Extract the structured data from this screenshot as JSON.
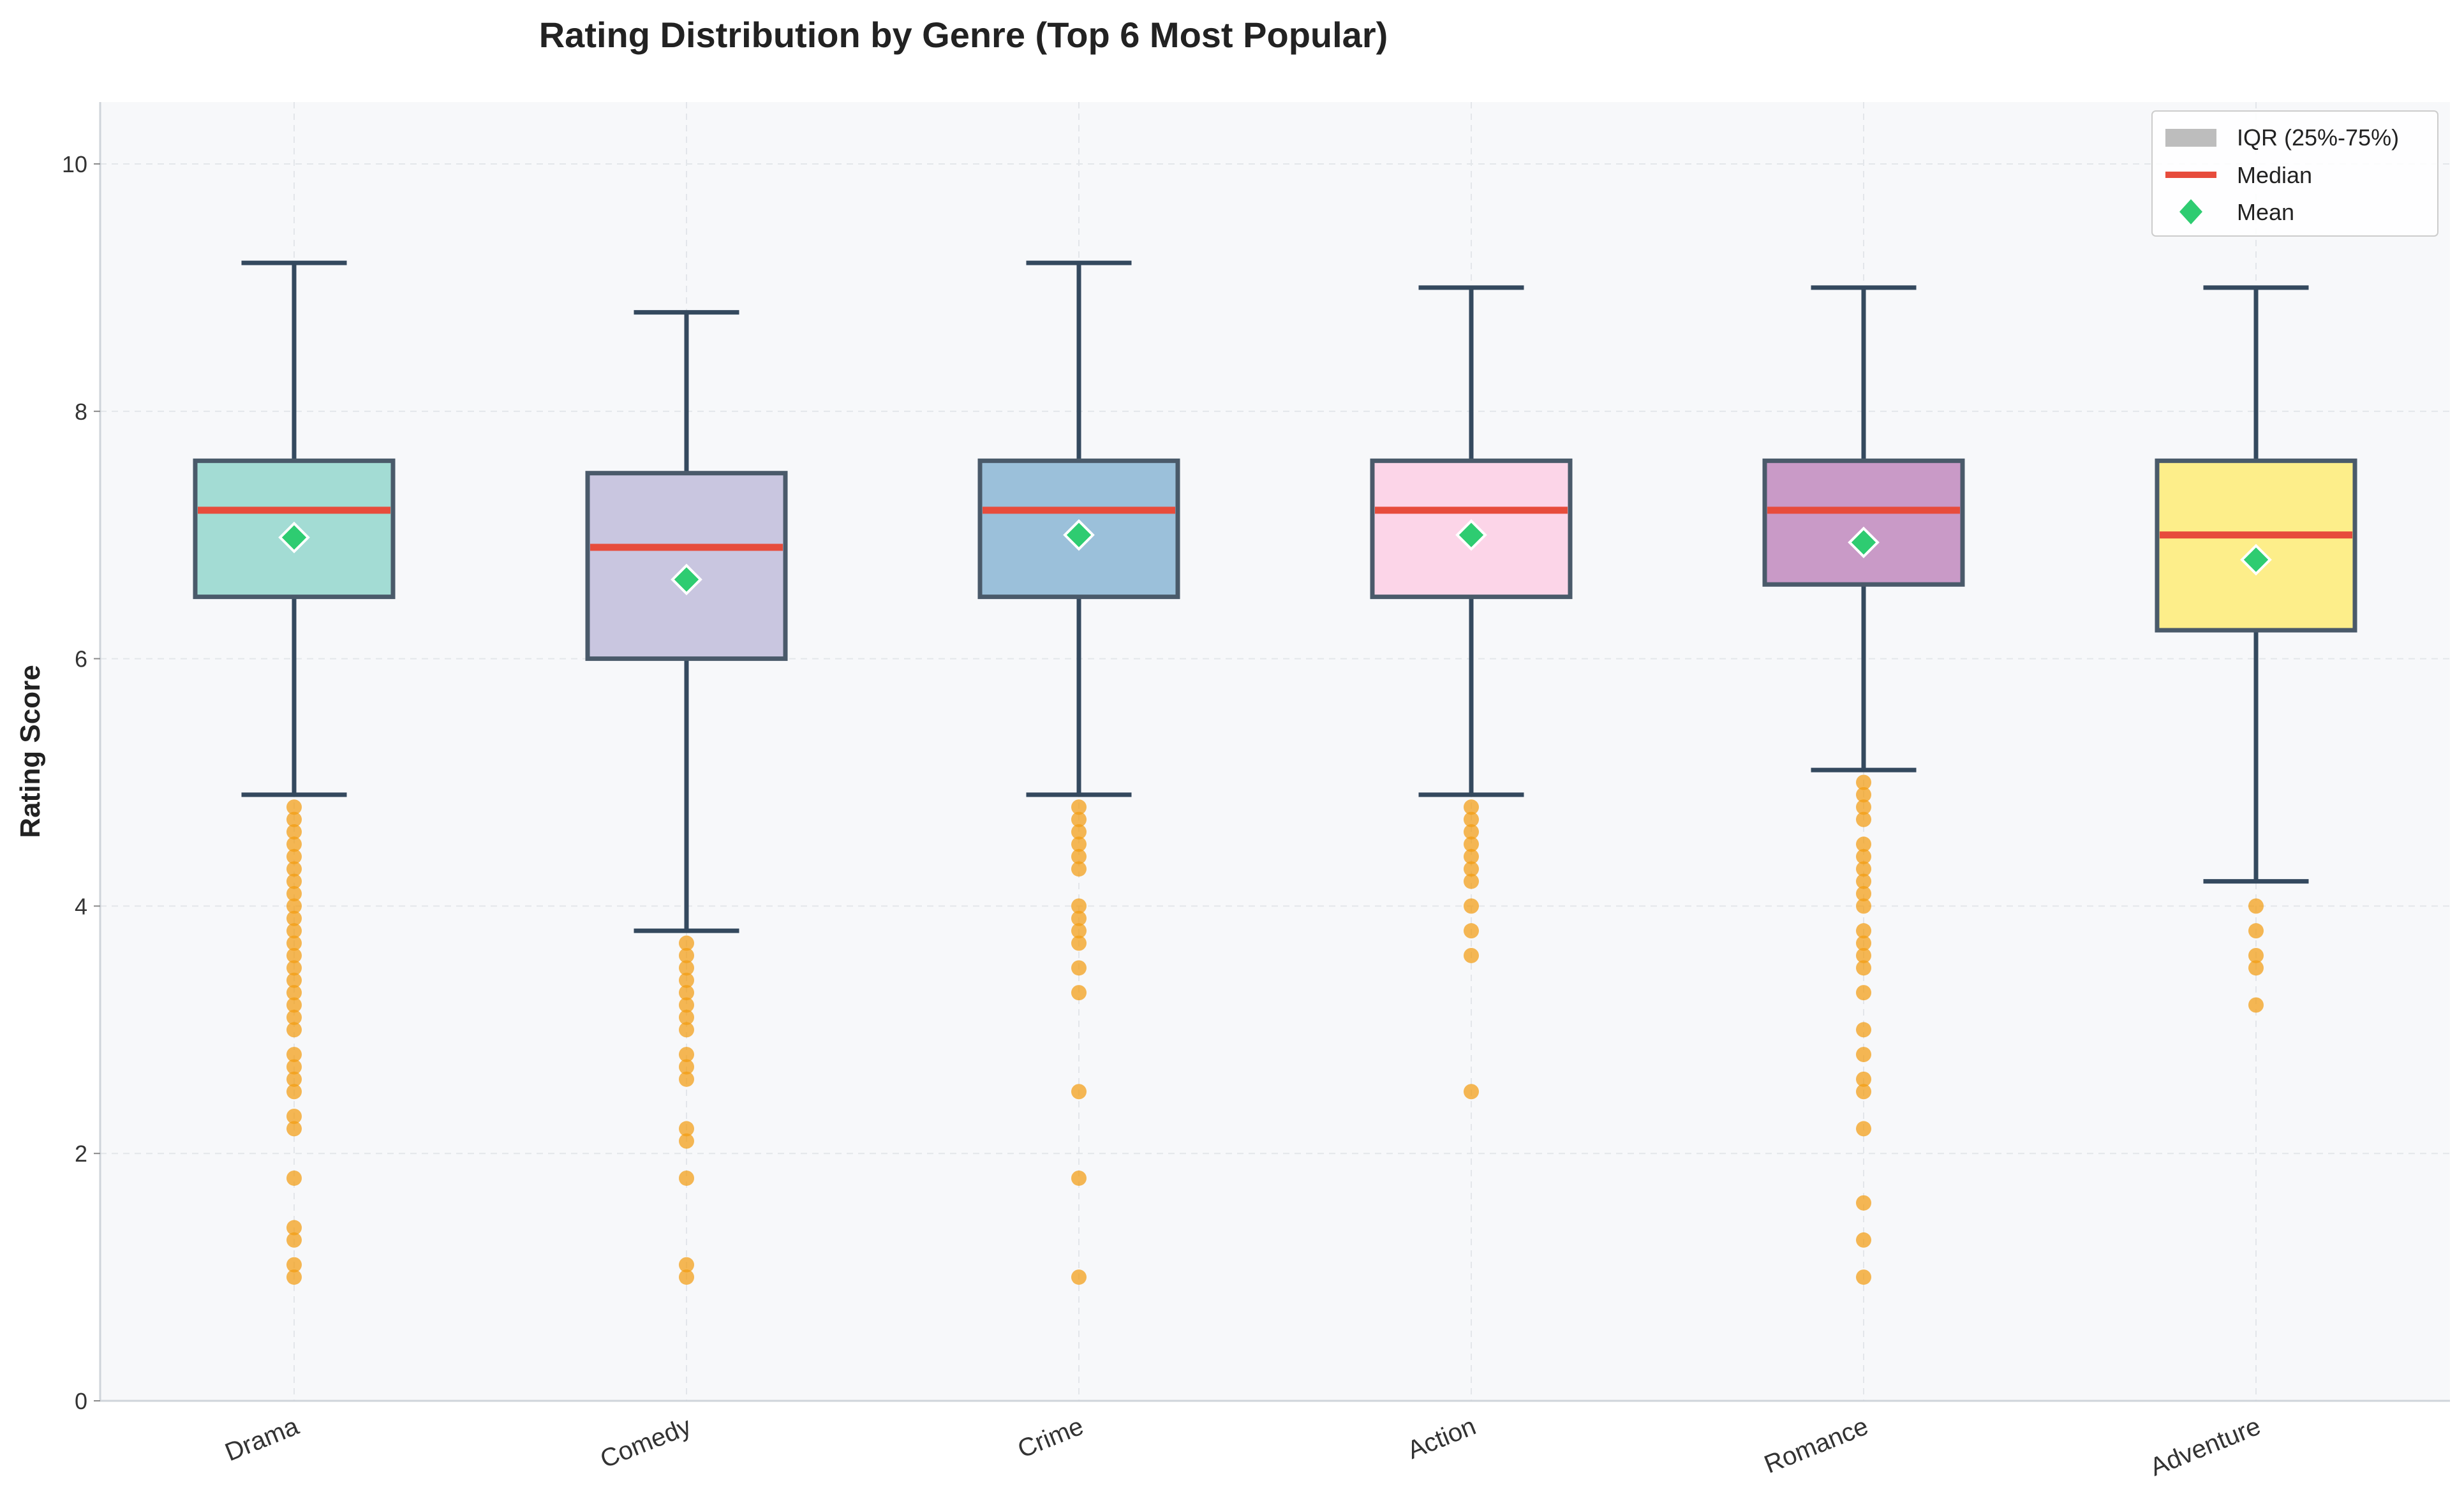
{
  "chart_data": {
    "type": "box",
    "title": "Rating Distribution by Genre (Top 6 Most Popular)",
    "xlabel": "",
    "ylabel": "Rating Score",
    "ylim": [
      0,
      10.5
    ],
    "yticks": [
      0,
      2,
      4,
      6,
      8,
      10
    ],
    "grid": true,
    "legend_position": "top-right",
    "legend": [
      {
        "label": "IQR (25%-75%)",
        "kind": "patch",
        "color": "#bdbdbd"
      },
      {
        "label": "Median",
        "kind": "line",
        "color": "#e74c3c"
      },
      {
        "label": "Mean",
        "kind": "diamond",
        "color": "#2ecc71"
      }
    ],
    "colors": {
      "box_edge": "#4a5a6a",
      "whisker": "#34495e",
      "median": "#e74c3c",
      "mean": "#2ecc71",
      "outlier": "#f39c12",
      "plot_bg": "#f7f8fa"
    },
    "categories": [
      "Drama",
      "Comedy",
      "Crime",
      "Action",
      "Romance",
      "Adventure"
    ],
    "boxes": [
      {
        "category": "Drama",
        "color": "#a3dcd4",
        "whisker_low": 4.9,
        "q1": 6.5,
        "median": 7.2,
        "q3": 7.6,
        "whisker_high": 9.2,
        "mean": 6.98,
        "outliers": [
          4.8,
          4.7,
          4.6,
          4.5,
          4.4,
          4.3,
          4.2,
          4.1,
          4.0,
          3.9,
          3.8,
          3.7,
          3.6,
          3.5,
          3.4,
          3.3,
          3.2,
          3.1,
          3.0,
          2.8,
          2.7,
          2.6,
          2.5,
          2.3,
          2.2,
          1.8,
          1.4,
          1.3,
          1.1,
          1.0
        ]
      },
      {
        "category": "Comedy",
        "color": "#c9c6e0",
        "whisker_low": 3.8,
        "q1": 6.0,
        "median": 6.9,
        "q3": 7.5,
        "whisker_high": 8.8,
        "mean": 6.64,
        "outliers": [
          3.7,
          3.6,
          3.5,
          3.4,
          3.3,
          3.2,
          3.1,
          3.0,
          2.8,
          2.7,
          2.6,
          2.2,
          2.1,
          1.8,
          1.1,
          1.0
        ]
      },
      {
        "category": "Crime",
        "color": "#9bc0da",
        "whisker_low": 4.9,
        "q1": 6.5,
        "median": 7.2,
        "q3": 7.6,
        "whisker_high": 9.2,
        "mean": 7.0,
        "outliers": [
          4.8,
          4.7,
          4.6,
          4.5,
          4.4,
          4.3,
          4.0,
          3.9,
          3.8,
          3.7,
          3.5,
          3.3,
          2.5,
          1.8,
          1.0
        ]
      },
      {
        "category": "Action",
        "color": "#fcd5e8",
        "whisker_low": 4.9,
        "q1": 6.5,
        "median": 7.2,
        "q3": 7.6,
        "whisker_high": 9.0,
        "mean": 7.0,
        "outliers": [
          4.8,
          4.7,
          4.6,
          4.5,
          4.4,
          4.3,
          4.2,
          4.0,
          3.8,
          3.6,
          2.5
        ]
      },
      {
        "category": "Romance",
        "color": "#c99ac7",
        "whisker_low": 5.1,
        "q1": 6.6,
        "median": 7.2,
        "q3": 7.6,
        "whisker_high": 9.0,
        "mean": 6.94,
        "outliers": [
          5.0,
          4.9,
          4.8,
          4.7,
          4.5,
          4.4,
          4.3,
          4.2,
          4.1,
          4.0,
          3.8,
          3.7,
          3.6,
          3.5,
          3.3,
          3.0,
          2.8,
          2.6,
          2.5,
          2.2,
          1.6,
          1.3,
          1.0
        ]
      },
      {
        "category": "Adventure",
        "color": "#fdee8a",
        "whisker_low": 4.2,
        "q1": 6.23,
        "median": 7.0,
        "q3": 7.6,
        "whisker_high": 9.0,
        "mean": 6.8,
        "outliers": [
          4.0,
          3.8,
          3.6,
          3.5,
          3.2
        ]
      }
    ]
  }
}
